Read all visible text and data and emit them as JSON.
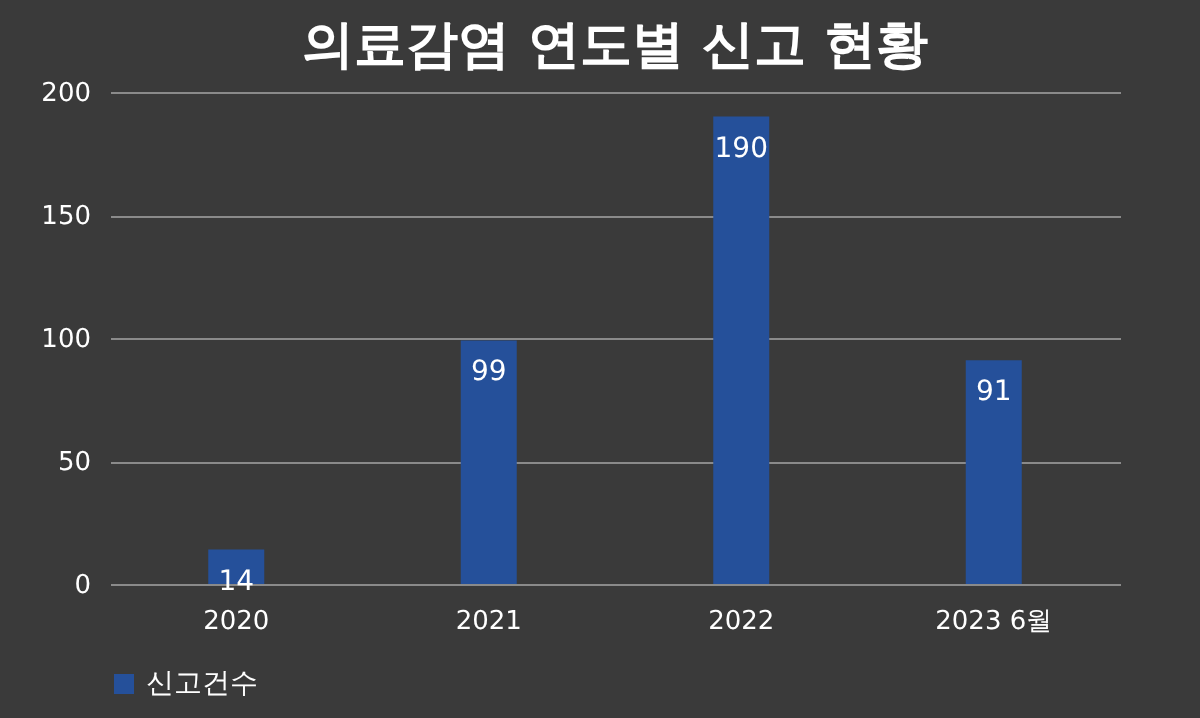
{
  "chart_data": {
    "type": "bar",
    "title": "의료감염 연도별 신고 현황",
    "categories": [
      "2020",
      "2021",
      "2022",
      "2023 6월"
    ],
    "series": [
      {
        "name": "신고건수",
        "color": "#25509a",
        "values": [
          14,
          99,
          190,
          91
        ]
      }
    ],
    "ylim": [
      0,
      200
    ],
    "yticks": [
      0,
      50,
      100,
      150,
      200
    ],
    "grid": "y",
    "legend": "bottom",
    "data_labels": true
  }
}
